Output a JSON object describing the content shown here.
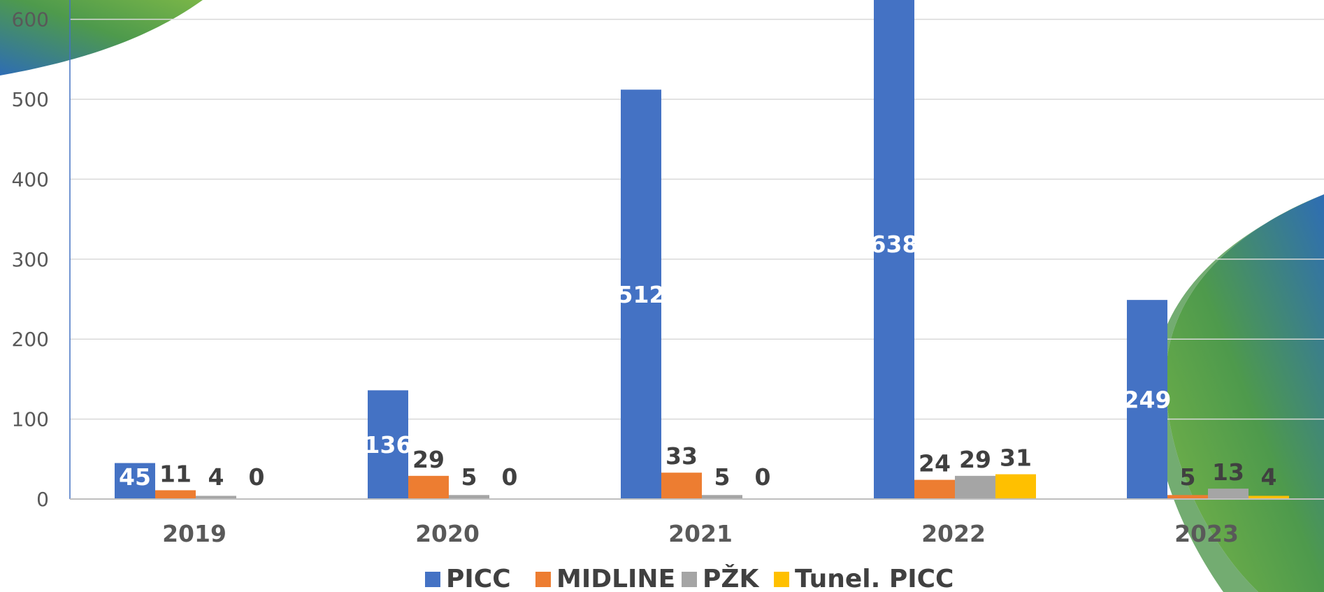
{
  "chart_data": {
    "type": "bar",
    "categories": [
      "2019",
      "2020",
      "2021",
      "2022",
      "2023"
    ],
    "series": [
      {
        "name": "PICC",
        "color": "#4472C4",
        "values": [
          45,
          136,
          512,
          638,
          249
        ]
      },
      {
        "name": "MIDLINE",
        "color": "#ED7D31",
        "values": [
          11,
          29,
          33,
          24,
          5
        ]
      },
      {
        "name": "PŽK",
        "color": "#A5A5A5",
        "values": [
          4,
          5,
          5,
          29,
          13
        ]
      },
      {
        "name": "Tunel. PICC",
        "color": "#FFC000",
        "values": [
          0,
          0,
          0,
          31,
          4
        ]
      }
    ],
    "y_ticks": [
      "0",
      "100",
      "200",
      "300",
      "400",
      "500",
      "600"
    ],
    "ylim": [
      0,
      600
    ],
    "grid": true,
    "legend_position": "bottom",
    "title": "",
    "xlabel": "",
    "ylabel": ""
  },
  "decoration": {
    "swoosh_colors": [
      "#2E6DB4",
      "#4E9A4C",
      "#7AB648"
    ]
  }
}
